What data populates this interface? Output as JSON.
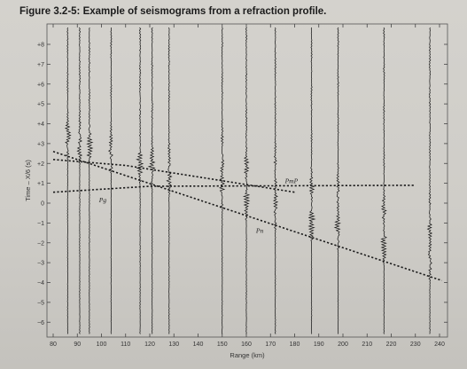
{
  "figure_title": "Figure 3.2-5: Example of seismograms from a refraction profile.",
  "chart_data": {
    "type": "line",
    "title": "Figure 3.2-5: Example of seismograms from a refraction profile.",
    "xlabel": "Range (km)",
    "ylabel": "Time – X/6 (s)",
    "xlim": [
      80,
      242
    ],
    "ylim": [
      -6.8,
      8.6
    ],
    "x_ticks": [
      "80",
      "90",
      "100",
      "110",
      "120",
      "130",
      "140",
      "150",
      "160",
      "170",
      "180",
      "190",
      "200",
      "210",
      "220",
      "230",
      "240"
    ],
    "y_ticks": [
      "+8",
      "+7",
      "+6",
      "+5",
      "+4",
      "+3",
      "+2",
      "+1",
      "0",
      "−1",
      "−2",
      "−3",
      "−4",
      "−5",
      "−6"
    ],
    "grid": false,
    "colors": {
      "ink": "#1a1a1a",
      "paper": "#d1cfca"
    },
    "seismogram_ranges_km": [
      86,
      91,
      95,
      104,
      116,
      121,
      128,
      150,
      160,
      172,
      187,
      198,
      217,
      236
    ],
    "series": [
      {
        "name": "Pg",
        "label": "Pg",
        "style": "dashed",
        "x": [
          80,
          120,
          230
        ],
        "y": [
          0.55,
          0.85,
          0.9
        ]
      },
      {
        "name": "PmP",
        "label": "PmP",
        "style": "dashed",
        "x": [
          80,
          110,
          180
        ],
        "y": [
          2.2,
          1.9,
          0.55
        ]
      },
      {
        "name": "Pn",
        "label": "Pn",
        "style": "dashed",
        "x": [
          80,
          241
        ],
        "y": [
          2.6,
          -3.9
        ]
      }
    ],
    "annotations": [
      {
        "text": "Pg",
        "x": 99,
        "y": 0.05
      },
      {
        "text": "PmP",
        "x": 176,
        "y": 1.0
      },
      {
        "text": "Pn",
        "x": 164,
        "y": -1.5
      }
    ]
  }
}
